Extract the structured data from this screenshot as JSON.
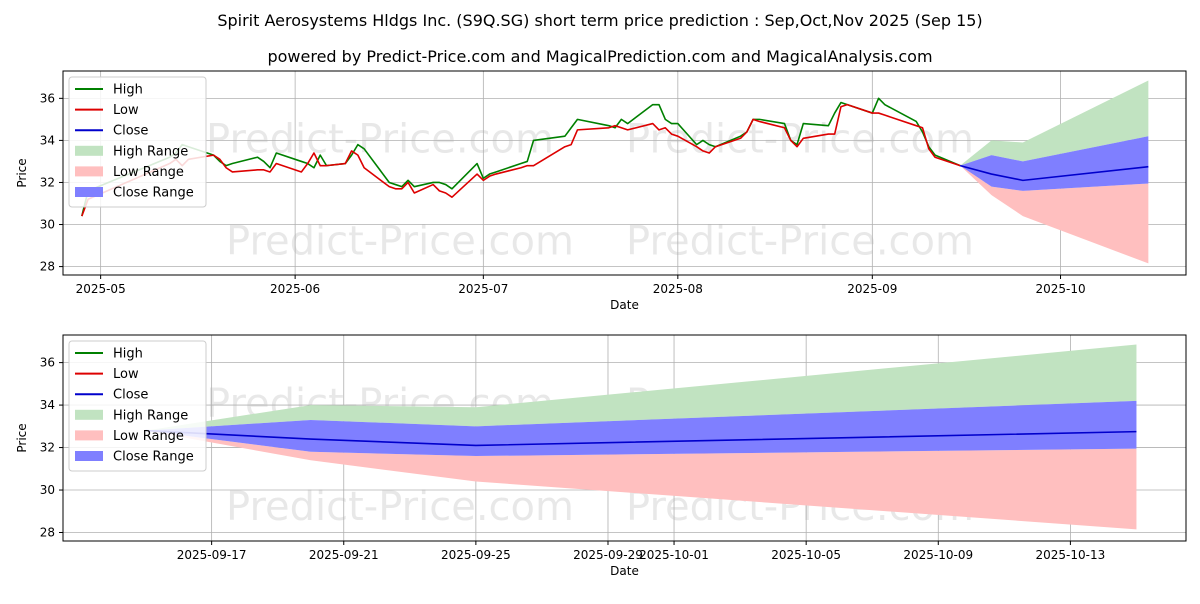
{
  "title": "Spirit Aerosystems Hldgs Inc. (S9Q.SG) short term price prediction : Sep,Oct,Nov 2025 (Sep 15)",
  "subtitle": "powered by Predict-Price.com and MagicalPrediction.com and MagicalAnalysis.com",
  "watermark": "Predict-Price.com",
  "colors": {
    "high": "#008000",
    "low": "#dd0000",
    "close": "#0000cc",
    "high_range": "#c1e3c1",
    "low_range": "#ffbfbf",
    "close_range": "#7f7fff"
  },
  "chart_data": [
    {
      "type": "line",
      "xlabel": "Date",
      "ylabel": "Price",
      "xlim": [
        "2025-04-25",
        "2025-10-21"
      ],
      "ylim": [
        27.6,
        37.3
      ],
      "grid": true,
      "legend_position": "top-left",
      "x_ticks": [
        {
          "date": "2025-05-01",
          "label": "2025-05"
        },
        {
          "date": "2025-06-01",
          "label": "2025-06"
        },
        {
          "date": "2025-07-01",
          "label": "2025-07"
        },
        {
          "date": "2025-08-01",
          "label": "2025-08"
        },
        {
          "date": "2025-09-01",
          "label": "2025-09"
        },
        {
          "date": "2025-10-01",
          "label": "2025-10"
        }
      ],
      "y_ticks": [
        28,
        30,
        32,
        34,
        36
      ],
      "series": [
        {
          "name": "High",
          "kind": "line",
          "color_key": "high",
          "x": [
            "2025-04-28",
            "2025-04-29",
            "2025-05-12",
            "2025-05-13",
            "2025-05-14",
            "2025-05-15",
            "2025-05-19",
            "2025-05-20",
            "2025-05-21",
            "2025-05-22",
            "2025-05-26",
            "2025-05-27",
            "2025-05-28",
            "2025-05-29",
            "2025-06-02",
            "2025-06-03",
            "2025-06-04",
            "2025-06-05",
            "2025-06-06",
            "2025-06-09",
            "2025-06-10",
            "2025-06-11",
            "2025-06-12",
            "2025-06-16",
            "2025-06-17",
            "2025-06-18",
            "2025-06-19",
            "2025-06-20",
            "2025-06-23",
            "2025-06-24",
            "2025-06-25",
            "2025-06-26",
            "2025-06-30",
            "2025-07-01",
            "2025-07-02",
            "2025-07-03",
            "2025-07-07",
            "2025-07-08",
            "2025-07-09",
            "2025-07-14",
            "2025-07-15",
            "2025-07-16",
            "2025-07-21",
            "2025-07-22",
            "2025-07-23",
            "2025-07-24",
            "2025-07-28",
            "2025-07-29",
            "2025-07-30",
            "2025-07-31",
            "2025-08-01",
            "2025-08-04",
            "2025-08-05",
            "2025-08-06",
            "2025-08-07",
            "2025-08-11",
            "2025-08-12",
            "2025-08-13",
            "2025-08-14",
            "2025-08-18",
            "2025-08-19",
            "2025-08-20",
            "2025-08-21",
            "2025-08-25",
            "2025-08-26",
            "2025-08-27",
            "2025-08-28",
            "2025-09-01",
            "2025-09-02",
            "2025-09-03",
            "2025-09-08",
            "2025-09-09",
            "2025-09-10",
            "2025-09-11",
            "2025-09-15"
          ],
          "y": [
            30.4,
            31.6,
            33.2,
            33.4,
            33.8,
            33.7,
            33.3,
            33.0,
            32.8,
            32.9,
            33.2,
            33.0,
            32.7,
            33.4,
            33.0,
            32.9,
            32.7,
            33.3,
            32.8,
            32.9,
            33.3,
            33.8,
            33.6,
            32.0,
            31.9,
            31.8,
            32.1,
            31.8,
            32.0,
            32.0,
            31.9,
            31.7,
            32.9,
            32.2,
            32.4,
            32.5,
            32.9,
            33.0,
            34.0,
            34.2,
            34.6,
            35.0,
            34.7,
            34.6,
            35.0,
            34.8,
            35.7,
            35.7,
            35.0,
            34.8,
            34.8,
            33.8,
            34.0,
            33.8,
            33.7,
            34.2,
            34.4,
            35.0,
            35.0,
            34.8,
            34.0,
            33.8,
            34.8,
            34.7,
            35.3,
            35.8,
            35.7,
            35.3,
            36.0,
            35.7,
            34.9,
            34.4,
            33.7,
            33.3,
            32.8
          ]
        },
        {
          "name": "Low",
          "kind": "line",
          "color_key": "low",
          "x": [
            "2025-04-28",
            "2025-04-29",
            "2025-05-12",
            "2025-05-13",
            "2025-05-14",
            "2025-05-15",
            "2025-05-19",
            "2025-05-20",
            "2025-05-21",
            "2025-05-22",
            "2025-05-26",
            "2025-05-27",
            "2025-05-28",
            "2025-05-29",
            "2025-06-02",
            "2025-06-03",
            "2025-06-04",
            "2025-06-05",
            "2025-06-06",
            "2025-06-09",
            "2025-06-10",
            "2025-06-11",
            "2025-06-12",
            "2025-06-16",
            "2025-06-17",
            "2025-06-18",
            "2025-06-19",
            "2025-06-20",
            "2025-06-23",
            "2025-06-24",
            "2025-06-25",
            "2025-06-26",
            "2025-06-30",
            "2025-07-01",
            "2025-07-02",
            "2025-07-03",
            "2025-07-07",
            "2025-07-08",
            "2025-07-09",
            "2025-07-14",
            "2025-07-15",
            "2025-07-16",
            "2025-07-21",
            "2025-07-22",
            "2025-07-23",
            "2025-07-24",
            "2025-07-28",
            "2025-07-29",
            "2025-07-30",
            "2025-07-31",
            "2025-08-01",
            "2025-08-04",
            "2025-08-05",
            "2025-08-06",
            "2025-08-07",
            "2025-08-11",
            "2025-08-12",
            "2025-08-13",
            "2025-08-14",
            "2025-08-18",
            "2025-08-19",
            "2025-08-20",
            "2025-08-21",
            "2025-08-25",
            "2025-08-26",
            "2025-08-27",
            "2025-08-28",
            "2025-09-01",
            "2025-09-02",
            "2025-09-03",
            "2025-09-08",
            "2025-09-09",
            "2025-09-10",
            "2025-09-11",
            "2025-09-15"
          ],
          "y": [
            30.4,
            31.2,
            32.9,
            33.1,
            32.8,
            33.1,
            33.3,
            33.1,
            32.7,
            32.5,
            32.6,
            32.6,
            32.5,
            32.9,
            32.5,
            32.9,
            33.4,
            32.8,
            32.8,
            32.9,
            33.5,
            33.3,
            32.7,
            31.8,
            31.7,
            31.7,
            32.0,
            31.5,
            31.9,
            31.6,
            31.5,
            31.3,
            32.4,
            32.1,
            32.3,
            32.4,
            32.7,
            32.8,
            32.8,
            33.7,
            33.8,
            34.5,
            34.6,
            34.7,
            34.6,
            34.5,
            34.8,
            34.5,
            34.6,
            34.3,
            34.2,
            33.7,
            33.5,
            33.4,
            33.7,
            34.1,
            34.4,
            35.0,
            34.9,
            34.6,
            34.0,
            33.7,
            34.1,
            34.3,
            34.3,
            35.6,
            35.7,
            35.3,
            35.3,
            35.2,
            34.7,
            34.6,
            33.6,
            33.2,
            32.8
          ]
        },
        {
          "name": "Close",
          "kind": "line",
          "color_key": "close",
          "x": [
            "2025-09-15",
            "2025-09-20",
            "2025-09-25",
            "2025-10-15"
          ],
          "y": [
            32.8,
            32.4,
            32.1,
            32.75
          ]
        },
        {
          "name": "High Range",
          "kind": "band",
          "color_key": "high_range",
          "x": [
            "2025-09-15",
            "2025-09-20",
            "2025-09-25",
            "2025-10-15"
          ],
          "upper": [
            32.8,
            34.0,
            33.9,
            36.85
          ],
          "lower": [
            32.8,
            33.3,
            33.0,
            34.2
          ]
        },
        {
          "name": "Low Range",
          "kind": "band",
          "color_key": "low_range",
          "x": [
            "2025-09-15",
            "2025-09-20",
            "2025-09-25",
            "2025-10-15"
          ],
          "upper": [
            32.8,
            31.8,
            31.6,
            31.95
          ],
          "lower": [
            32.8,
            31.4,
            30.4,
            28.15
          ]
        },
        {
          "name": "Close Range",
          "kind": "band",
          "color_key": "close_range",
          "x": [
            "2025-09-15",
            "2025-09-20",
            "2025-09-25",
            "2025-10-15"
          ],
          "upper": [
            32.8,
            33.3,
            33.0,
            34.2
          ],
          "lower": [
            32.8,
            31.8,
            31.6,
            31.95
          ]
        }
      ]
    },
    {
      "type": "line",
      "xlabel": "Date",
      "ylabel": "Price",
      "xlim": [
        "2025-09-12T12:00",
        "2025-10-16T12:00"
      ],
      "ylim": [
        27.6,
        37.3
      ],
      "grid": true,
      "legend_position": "top-left",
      "x_ticks": [
        {
          "date": "2025-09-17",
          "label": "2025-09-17"
        },
        {
          "date": "2025-09-21",
          "label": "2025-09-21"
        },
        {
          "date": "2025-09-25",
          "label": "2025-09-25"
        },
        {
          "date": "2025-09-29",
          "label": "2025-09-29"
        },
        {
          "date": "2025-10-01",
          "label": "2025-10-01"
        },
        {
          "date": "2025-10-05",
          "label": "2025-10-05"
        },
        {
          "date": "2025-10-09",
          "label": "2025-10-09"
        },
        {
          "date": "2025-10-13",
          "label": "2025-10-13"
        }
      ],
      "y_ticks": [
        28,
        30,
        32,
        34,
        36
      ],
      "series": [
        {
          "name": "High",
          "kind": "line",
          "color_key": "high",
          "x": [],
          "y": []
        },
        {
          "name": "Low",
          "kind": "line",
          "color_key": "low",
          "x": [],
          "y": []
        },
        {
          "name": "Close",
          "kind": "line",
          "color_key": "close",
          "x": [
            "2025-09-15",
            "2025-09-20",
            "2025-09-25",
            "2025-10-15"
          ],
          "y": [
            32.8,
            32.4,
            32.1,
            32.75
          ]
        },
        {
          "name": "High Range",
          "kind": "band",
          "color_key": "high_range",
          "x": [
            "2025-09-15",
            "2025-09-20",
            "2025-09-25",
            "2025-10-15"
          ],
          "upper": [
            32.8,
            34.0,
            33.9,
            36.85
          ],
          "lower": [
            32.8,
            33.3,
            33.0,
            34.2
          ]
        },
        {
          "name": "Low Range",
          "kind": "band",
          "color_key": "low_range",
          "x": [
            "2025-09-15",
            "2025-09-20",
            "2025-09-25",
            "2025-10-15"
          ],
          "upper": [
            32.8,
            31.8,
            31.6,
            31.95
          ],
          "lower": [
            32.8,
            31.4,
            30.4,
            28.15
          ]
        },
        {
          "name": "Close Range",
          "kind": "band",
          "color_key": "close_range",
          "x": [
            "2025-09-15",
            "2025-09-20",
            "2025-09-25",
            "2025-10-15"
          ],
          "upper": [
            32.8,
            33.3,
            33.0,
            34.2
          ],
          "lower": [
            32.8,
            31.8,
            31.6,
            31.95
          ]
        }
      ]
    }
  ]
}
